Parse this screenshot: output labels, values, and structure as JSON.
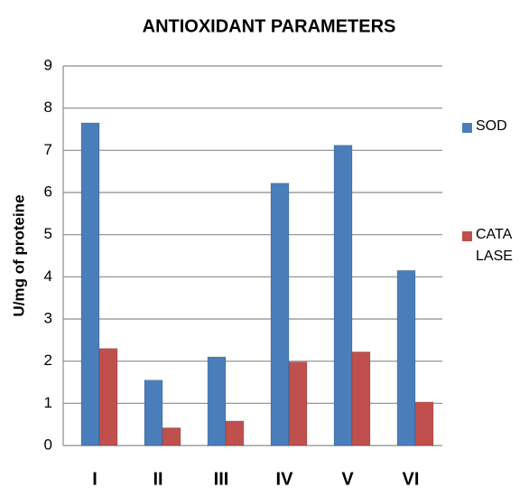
{
  "chart_data": {
    "type": "bar",
    "title": "ANTIOXIDANT PARAMETERS",
    "y_label": "U/mg of proteine",
    "categories": [
      "I",
      "II",
      "III",
      "IV",
      "V",
      "VI"
    ],
    "series": [
      {
        "name": "SOD",
        "color": "#4a7ebb",
        "values": [
          7.65,
          1.55,
          2.1,
          6.22,
          7.12,
          4.15
        ]
      },
      {
        "name": "CATA LASE",
        "color": "#c0504d",
        "values": [
          2.3,
          0.42,
          0.58,
          1.98,
          2.22,
          1.03
        ]
      }
    ],
    "ylim": [
      0,
      9
    ],
    "yticks": [
      0,
      1,
      2,
      3,
      4,
      5,
      6,
      7,
      8,
      9
    ],
    "grid": true,
    "legend": "right"
  }
}
